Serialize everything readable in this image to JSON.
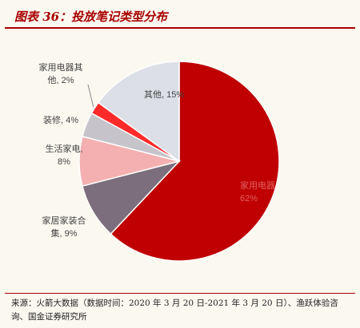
{
  "title": "图表 36：投放笔记类型分布",
  "source": "来源：火箭大数据（数据时间：2020 年 3 月 20 日-2021 年 3 月 20 日）、渔跃体验咨询、国金证券研究所",
  "chart_data": {
    "type": "pie",
    "title": "",
    "slices": [
      {
        "name": "家用电器",
        "value": 62,
        "label_line1": "家用电器",
        "label_line2": "62%",
        "color": "#c00000",
        "label_color": "#e06060"
      },
      {
        "name": "家居家装合集",
        "value": 9,
        "label_line1": "家居家装合",
        "label_line2": "集, 9%",
        "color": "#7c6e7c",
        "label_color": "#444444"
      },
      {
        "name": "生活家电",
        "value": 8,
        "label_line1": "生活家电,",
        "label_line2": "8%",
        "color": "#f4b0b0",
        "label_color": "#444444"
      },
      {
        "name": "装修",
        "value": 4,
        "label_line1": "装修, 4%",
        "label_line2": "",
        "color": "#c6c3ca",
        "label_color": "#444444"
      },
      {
        "name": "家用电器其他",
        "value": 2,
        "label_line1": "家用电器其",
        "label_line2": "他, 2%",
        "color": "#ff2a2a",
        "label_color": "#444444"
      },
      {
        "name": "其他",
        "value": 15,
        "label_line1": "其他, 15%",
        "label_line2": "",
        "color": "#dcdfe6",
        "label_color": "#444444"
      }
    ]
  }
}
